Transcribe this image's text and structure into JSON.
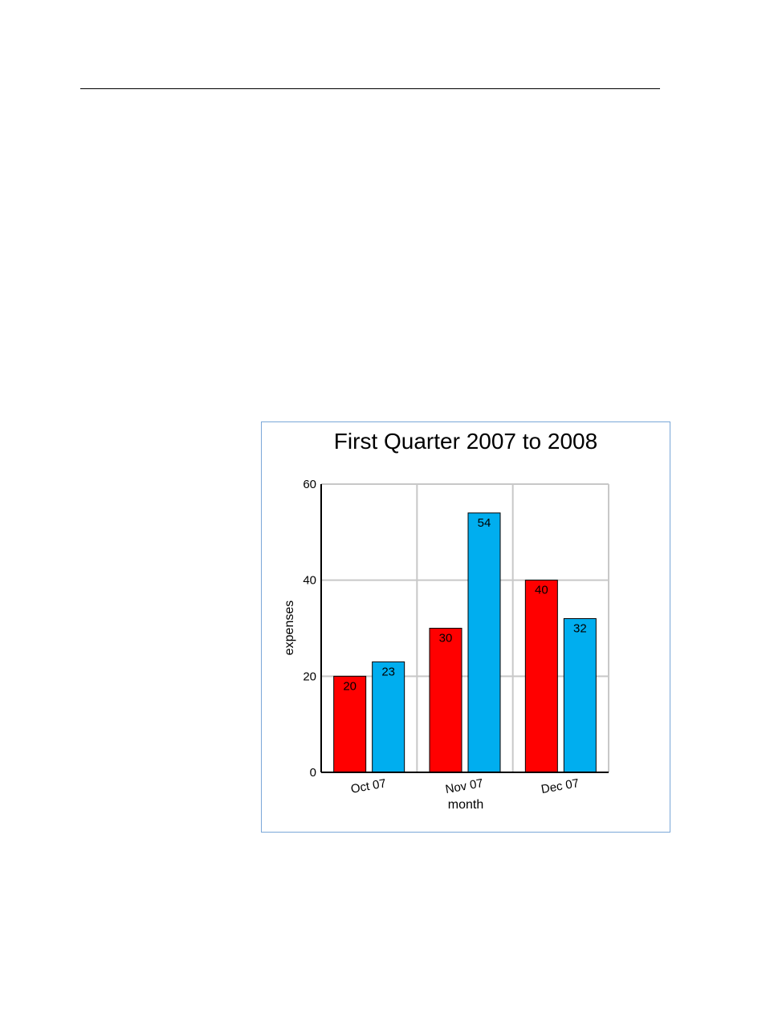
{
  "chart_data": {
    "type": "bar",
    "title": "First Quarter 2007 to 2008",
    "xlabel": "month",
    "ylabel": "expenses",
    "categories": [
      "Oct 07",
      "Nov 07",
      "Dec 07"
    ],
    "series": [
      {
        "color": "#ff0000",
        "values": [
          20,
          30,
          40
        ]
      },
      {
        "color": "#00aeef",
        "values": [
          23,
          54,
          32
        ]
      }
    ],
    "ylim": [
      0,
      60
    ],
    "yticks": [
      "0",
      "20",
      "40",
      "60"
    ],
    "grid": true,
    "legend": "none"
  }
}
